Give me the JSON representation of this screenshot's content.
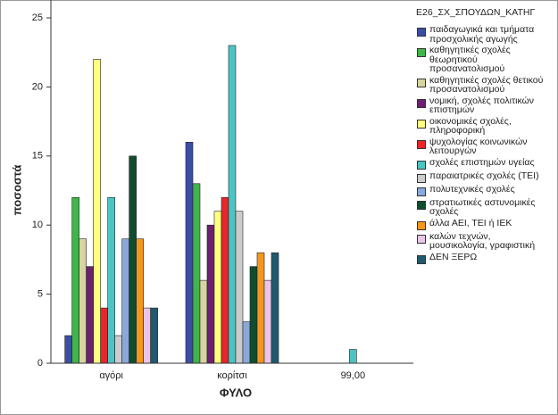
{
  "chart_data": {
    "type": "bar",
    "y_label": "ποσοστά",
    "x_label": "ΦΥΛΟ",
    "legend_title": "E26_ΣΧ_ΣΠΟΥΔΩΝ_ΚΑΤΗΓ",
    "categories": [
      "αγόρι",
      "κορίτσι",
      "99,00"
    ],
    "ylim": [
      0,
      25
    ],
    "yticks": [
      0,
      5,
      10,
      15,
      20,
      25
    ],
    "series": [
      {
        "name": "παιδαγωγικά και τμήματα\nπροσχολικής αγωγής",
        "color": "#3b4ea3",
        "values": [
          2,
          16,
          null
        ]
      },
      {
        "name": "καθηγητικές σχολές\nθεωρητικού\nπροσανατολισμού",
        "color": "#3fb54a",
        "values": [
          12,
          13,
          null
        ]
      },
      {
        "name": "καθηγητικές σχολές θετικού\nπροσανατολισμού",
        "color": "#d8d4a2",
        "values": [
          9,
          6,
          null
        ]
      },
      {
        "name": "νομική, σχολές πολιτικών\nεπιστημών",
        "color": "#6b2070",
        "values": [
          7,
          10,
          null
        ]
      },
      {
        "name": "οικονομικές σχολές,\nπληροφορική",
        "color": "#ffff80",
        "values": [
          22,
          11,
          null
        ]
      },
      {
        "name": "ψυχολογίας κοινωνικών\nλειτουργών",
        "color": "#e8262b",
        "values": [
          4,
          12,
          null
        ]
      },
      {
        "name": "σχολές επιστημών υγείας",
        "color": "#4dc4c4",
        "values": [
          12,
          23,
          1
        ]
      },
      {
        "name": "παραιατρικές σχολές (ΤΕΙ)",
        "color": "#cccccc",
        "values": [
          2,
          11,
          null
        ]
      },
      {
        "name": "πολυτεχνικές σχολές",
        "color": "#8ba8d8",
        "values": [
          9,
          3,
          null
        ]
      },
      {
        "name": "στρατιωτικές αστυνομικές\nσχολές",
        "color": "#0f4d2e",
        "values": [
          15,
          7,
          null
        ]
      },
      {
        "name": "άλλα ΑΕΙ, ΤΕΙ ή ΙΕΚ",
        "color": "#f5961f",
        "values": [
          9,
          8,
          null
        ]
      },
      {
        "name": "καλών τεχνών,\nμουσικολογία, γραφιστική",
        "color": "#e8c6ea",
        "values": [
          4,
          6,
          null
        ]
      },
      {
        "name": "ΔΕΝ ΞΕΡΩ",
        "color": "#1f5a6e",
        "values": [
          4,
          8,
          null
        ]
      }
    ]
  }
}
